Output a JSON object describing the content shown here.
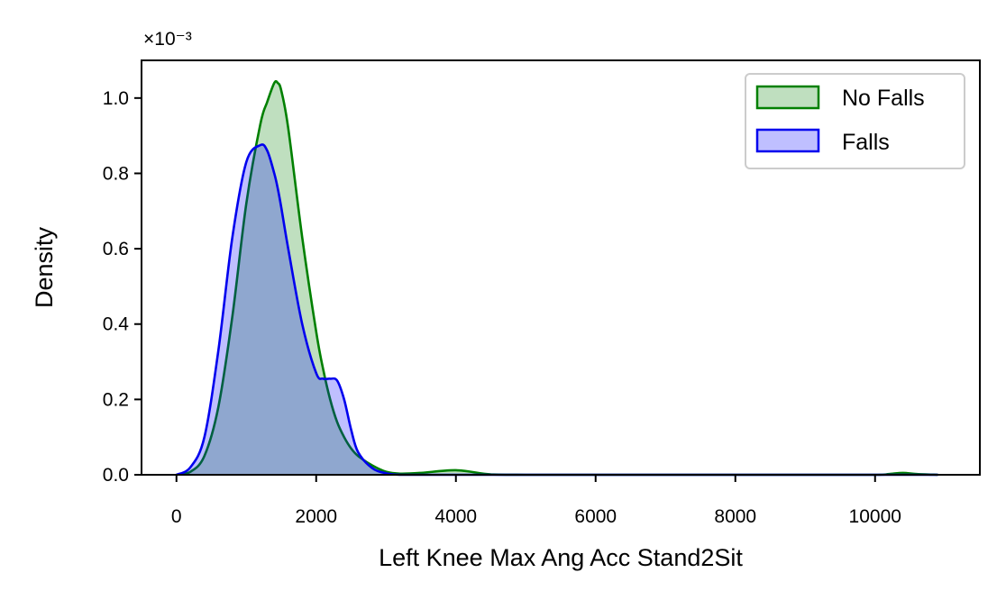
{
  "chart_data": {
    "type": "area",
    "title": "",
    "xlabel": "Left Knee Max Ang Acc Stand2Sit",
    "ylabel": "Density",
    "y_scale_note": "×10⁻³",
    "xlim": [
      -500,
      11500
    ],
    "ylim": [
      0,
      1.1
    ],
    "x_ticks": [
      0,
      2000,
      4000,
      6000,
      8000,
      10000
    ],
    "x_tick_labels": [
      "0",
      "2000",
      "4000",
      "6000",
      "8000",
      "10000"
    ],
    "y_ticks": [
      0.0,
      0.2,
      0.4,
      0.6,
      0.8,
      1.0
    ],
    "y_tick_labels": [
      "0.0",
      "0.2",
      "0.4",
      "0.6",
      "0.8",
      "1.0"
    ],
    "grid": false,
    "legend_position": "top-right",
    "x": [
      0,
      200,
      400,
      600,
      800,
      1000,
      1200,
      1300,
      1400,
      1450,
      1500,
      1600,
      1800,
      2000,
      2100,
      2200,
      2300,
      2400,
      2500,
      2600,
      2800,
      3000,
      3200,
      3500,
      4000,
      4500,
      5000,
      6000,
      7000,
      8000,
      9000,
      10000,
      10200,
      10400,
      10600,
      10900
    ],
    "series": [
      {
        "name": "No Falls",
        "color": "#008000",
        "fill": "rgba(0,128,0,0.25)",
        "values": [
          0.0,
          0.008,
          0.05,
          0.18,
          0.42,
          0.72,
          0.93,
          0.99,
          1.04,
          1.04,
          1.02,
          0.92,
          0.63,
          0.38,
          0.28,
          0.2,
          0.14,
          0.1,
          0.07,
          0.05,
          0.025,
          0.008,
          0.003,
          0.005,
          0.012,
          0.001,
          0.0,
          0.0,
          0.0,
          0.0,
          0.0,
          0.0,
          0.002,
          0.005,
          0.002,
          0.0
        ]
      },
      {
        "name": "Falls",
        "color": "#0000ee",
        "fill": "rgba(0,0,255,0.25)",
        "values": [
          0.0,
          0.02,
          0.1,
          0.33,
          0.63,
          0.83,
          0.875,
          0.86,
          0.8,
          0.76,
          0.71,
          0.6,
          0.4,
          0.27,
          0.255,
          0.255,
          0.25,
          0.2,
          0.12,
          0.06,
          0.018,
          0.004,
          0.0,
          0.0,
          0.0,
          0.0,
          0.0,
          0.0,
          0.0,
          0.0,
          0.0,
          0.0,
          0.0,
          0.0,
          0.0,
          0.0
        ]
      }
    ]
  }
}
